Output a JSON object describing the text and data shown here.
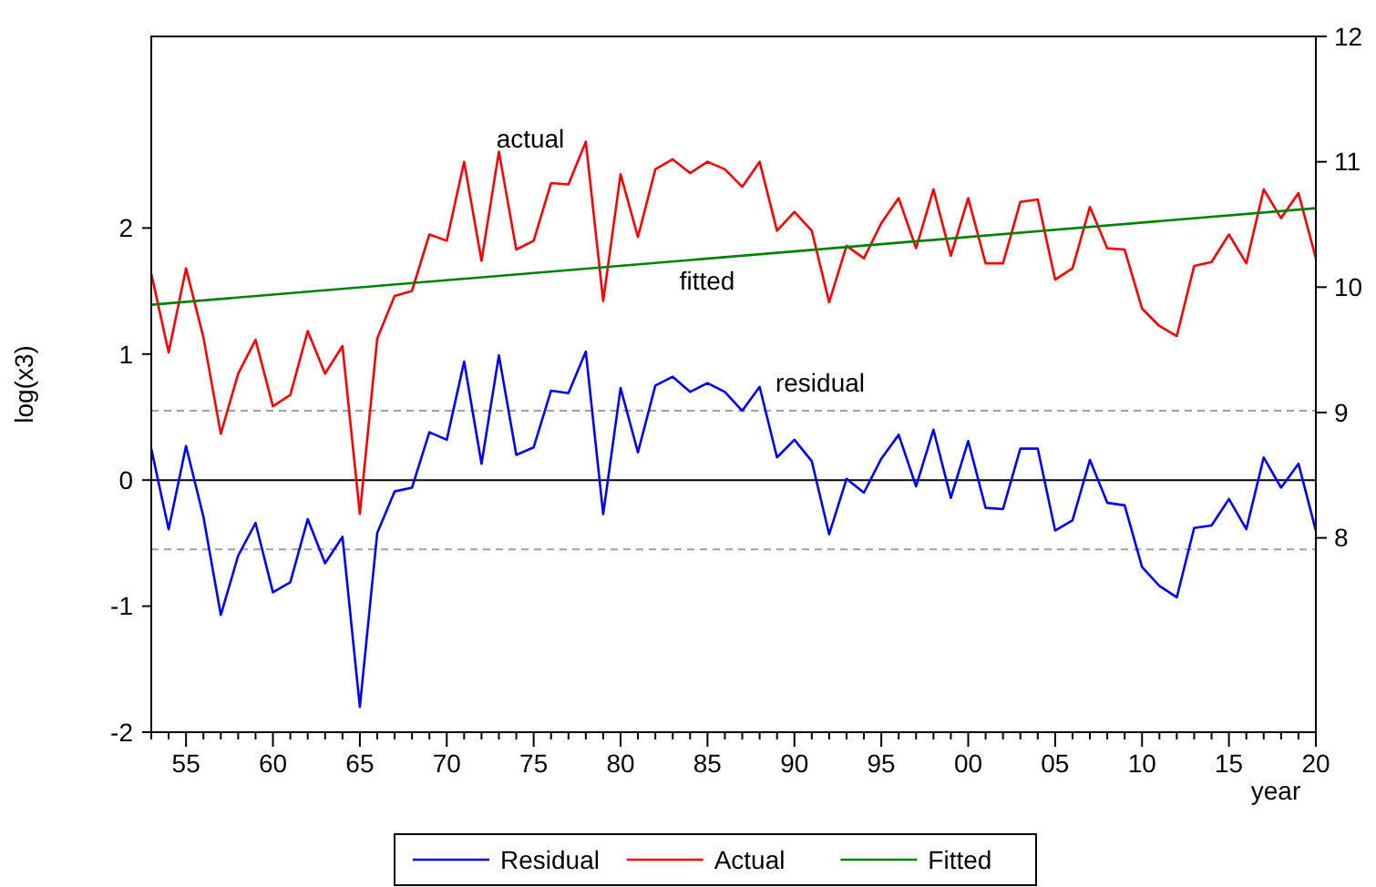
{
  "chart_data": {
    "type": "line",
    "xlabel": "year",
    "ylabel": "log(x3)",
    "x": [
      1953,
      1954,
      1955,
      1956,
      1957,
      1958,
      1959,
      1960,
      1961,
      1962,
      1963,
      1964,
      1965,
      1966,
      1967,
      1968,
      1969,
      1970,
      1971,
      1972,
      1973,
      1974,
      1975,
      1976,
      1977,
      1978,
      1979,
      1980,
      1981,
      1982,
      1983,
      1984,
      1985,
      1986,
      1987,
      1988,
      1989,
      1990,
      1991,
      1992,
      1993,
      1994,
      1995,
      1996,
      1997,
      1998,
      1999,
      2000,
      2001,
      2002,
      2003,
      2004,
      2005,
      2006,
      2007,
      2008,
      2009,
      2010,
      2011,
      2012,
      2013,
      2014,
      2015,
      2016,
      2017,
      2018,
      2019,
      2020
    ],
    "xlim": [
      1953,
      2020
    ],
    "xticks": [
      {
        "value": 1953,
        "label": null
      },
      {
        "value": 1954,
        "label": null
      },
      {
        "value": 1955,
        "label": "55"
      },
      {
        "value": 1956,
        "label": null
      },
      {
        "value": 1957,
        "label": null
      },
      {
        "value": 1958,
        "label": null
      },
      {
        "value": 1959,
        "label": null
      },
      {
        "value": 1960,
        "label": "60"
      },
      {
        "value": 1961,
        "label": null
      },
      {
        "value": 1962,
        "label": null
      },
      {
        "value": 1963,
        "label": null
      },
      {
        "value": 1964,
        "label": null
      },
      {
        "value": 1965,
        "label": "65"
      },
      {
        "value": 1966,
        "label": null
      },
      {
        "value": 1967,
        "label": null
      },
      {
        "value": 1968,
        "label": null
      },
      {
        "value": 1969,
        "label": null
      },
      {
        "value": 1970,
        "label": "70"
      },
      {
        "value": 1971,
        "label": null
      },
      {
        "value": 1972,
        "label": null
      },
      {
        "value": 1973,
        "label": null
      },
      {
        "value": 1974,
        "label": null
      },
      {
        "value": 1975,
        "label": "75"
      },
      {
        "value": 1976,
        "label": null
      },
      {
        "value": 1977,
        "label": null
      },
      {
        "value": 1978,
        "label": null
      },
      {
        "value": 1979,
        "label": null
      },
      {
        "value": 1980,
        "label": "80"
      },
      {
        "value": 1981,
        "label": null
      },
      {
        "value": 1982,
        "label": null
      },
      {
        "value": 1983,
        "label": null
      },
      {
        "value": 1984,
        "label": null
      },
      {
        "value": 1985,
        "label": "85"
      },
      {
        "value": 1986,
        "label": null
      },
      {
        "value": 1987,
        "label": null
      },
      {
        "value": 1988,
        "label": null
      },
      {
        "value": 1989,
        "label": null
      },
      {
        "value": 1990,
        "label": "90"
      },
      {
        "value": 1991,
        "label": null
      },
      {
        "value": 1992,
        "label": null
      },
      {
        "value": 1993,
        "label": null
      },
      {
        "value": 1994,
        "label": null
      },
      {
        "value": 1995,
        "label": "95"
      },
      {
        "value": 1996,
        "label": null
      },
      {
        "value": 1997,
        "label": null
      },
      {
        "value": 1998,
        "label": null
      },
      {
        "value": 1999,
        "label": null
      },
      {
        "value": 2000,
        "label": "00"
      },
      {
        "value": 2001,
        "label": null
      },
      {
        "value": 2002,
        "label": null
      },
      {
        "value": 2003,
        "label": null
      },
      {
        "value": 2004,
        "label": null
      },
      {
        "value": 2005,
        "label": "05"
      },
      {
        "value": 2006,
        "label": null
      },
      {
        "value": 2007,
        "label": null
      },
      {
        "value": 2008,
        "label": null
      },
      {
        "value": 2009,
        "label": null
      },
      {
        "value": 2010,
        "label": "10"
      },
      {
        "value": 2011,
        "label": null
      },
      {
        "value": 2012,
        "label": null
      },
      {
        "value": 2013,
        "label": null
      },
      {
        "value": 2014,
        "label": null
      },
      {
        "value": 2015,
        "label": "15"
      },
      {
        "value": 2016,
        "label": null
      },
      {
        "value": 2017,
        "label": null
      },
      {
        "value": 2018,
        "label": null
      },
      {
        "value": 2019,
        "label": null
      },
      {
        "value": 2020,
        "label": "20"
      }
    ],
    "ylim": [
      -2,
      3.52
    ],
    "yticks": [
      -2,
      -1,
      0,
      1,
      2
    ],
    "y2lim": [
      6.45,
      12
    ],
    "y2ticks": [
      8,
      9,
      10,
      11,
      12
    ],
    "series": [
      {
        "name": "Residual",
        "color": "#0000ff",
        "values": [
          0.25,
          -0.39,
          0.27,
          -0.29,
          -1.07,
          -0.6,
          -0.34,
          -0.89,
          -0.81,
          -0.31,
          -0.66,
          -0.45,
          -1.8,
          -0.42,
          -0.09,
          -0.06,
          0.38,
          0.32,
          0.94,
          0.13,
          0.99,
          0.2,
          0.26,
          0.71,
          0.69,
          1.02,
          -0.27,
          0.73,
          0.22,
          0.75,
          0.82,
          0.7,
          0.77,
          0.7,
          0.55,
          0.74,
          0.18,
          0.32,
          0.15,
          -0.43,
          0.01,
          -0.1,
          0.17,
          0.36,
          -0.05,
          0.4,
          -0.14,
          0.31,
          -0.22,
          -0.23,
          0.25,
          0.25,
          -0.4,
          -0.32,
          0.16,
          -0.18,
          -0.2,
          -0.69,
          -0.84,
          -0.93,
          -0.38,
          -0.36,
          -0.15,
          -0.39,
          0.18,
          -0.06,
          0.13,
          -0.4
        ]
      },
      {
        "name": "Actual",
        "color": "#ff0000",
        "axis": "y2",
        "values": [
          10.11,
          9.48,
          10.15,
          9.6,
          8.83,
          9.31,
          9.58,
          9.05,
          9.14,
          9.65,
          9.31,
          9.53,
          8.19,
          9.59,
          9.93,
          9.97,
          10.42,
          10.37,
          11.0,
          10.21,
          11.08,
          10.3,
          10.37,
          10.83,
          10.82,
          11.16,
          9.89,
          10.9,
          10.4,
          10.94,
          11.02,
          10.91,
          11.0,
          10.94,
          10.8,
          11.0,
          10.45,
          10.6,
          10.45,
          9.88,
          10.33,
          10.23,
          10.51,
          10.71,
          10.31,
          10.78,
          10.25,
          10.71,
          10.19,
          10.19,
          10.68,
          10.7,
          10.06,
          10.15,
          10.64,
          10.31,
          10.3,
          9.83,
          9.69,
          9.61,
          10.17,
          10.2,
          10.42,
          10.19,
          10.78,
          10.55,
          10.75,
          10.23
        ]
      },
      {
        "name": "Fitted",
        "color": "#008000",
        "axis": "y2",
        "x": [
          1953,
          2020
        ],
        "values": [
          9.86,
          10.63
        ]
      }
    ],
    "ref_lines": [
      {
        "axis": "y",
        "value": 0,
        "color": "#000000",
        "line_style": "solid"
      },
      {
        "axis": "y",
        "value": 0.55,
        "color": "#a0a0a0",
        "line_style": "dashed"
      },
      {
        "axis": "y",
        "value": -0.55,
        "color": "#a0a0a0",
        "line_style": "dashed"
      }
    ],
    "annotations": [
      "actual",
      "fitted",
      "residual"
    ],
    "grid": false,
    "legend": "bottom",
    "marker": "none",
    "line_style": "solid"
  }
}
